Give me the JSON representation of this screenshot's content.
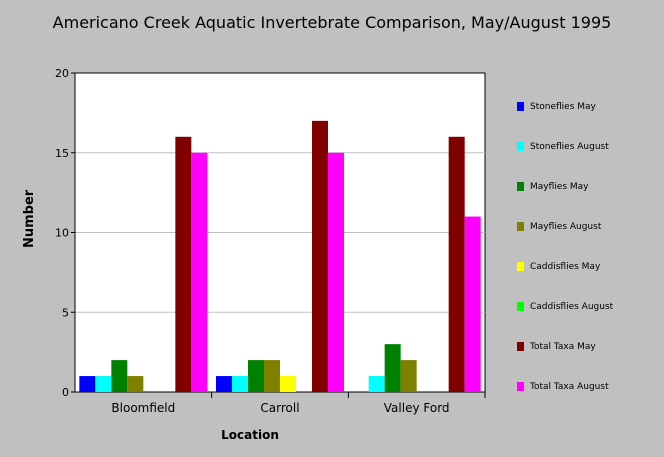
{
  "chart_data": {
    "type": "bar",
    "title": "Americano Creek Aquatic Invertebrate Comparison, May/August 1995",
    "xlabel": "Location",
    "ylabel": "Number",
    "ylim": [
      0,
      20
    ],
    "yticks": [
      "0",
      "5",
      "10",
      "15",
      "20"
    ],
    "grid": true,
    "legend_position": "right",
    "categories": [
      "Bloomfield",
      "Carroll",
      "Valley Ford"
    ],
    "series": [
      {
        "name": "Stoneflies May",
        "color": "#0000ff",
        "values": [
          1,
          1,
          0
        ]
      },
      {
        "name": "Stoneflies August",
        "color": "#00ffff",
        "values": [
          1,
          1,
          1
        ]
      },
      {
        "name": "Mayflies May",
        "color": "#008000",
        "values": [
          2,
          2,
          3
        ]
      },
      {
        "name": "Mayflies August",
        "color": "#808000",
        "values": [
          1,
          2,
          2
        ]
      },
      {
        "name": "Caddisflies May",
        "color": "#ffff00",
        "values": [
          0,
          1,
          0
        ]
      },
      {
        "name": "Caddisflies August",
        "color": "#00ff00",
        "values": [
          0,
          0,
          0
        ]
      },
      {
        "name": "Total Taxa May",
        "color": "#800000",
        "values": [
          16,
          17,
          16
        ]
      },
      {
        "name": "Total Taxa August",
        "color": "#ff00ff",
        "values": [
          15,
          15,
          11
        ]
      }
    ]
  }
}
